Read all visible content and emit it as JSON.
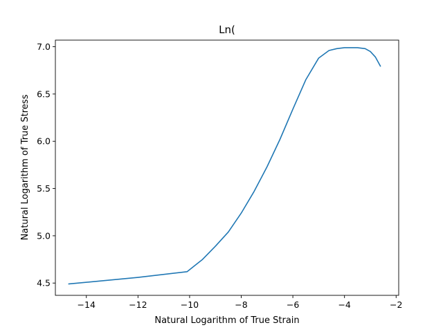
{
  "chart_data": {
    "type": "line",
    "title": "Ln(",
    "xlabel": "Natural Logarithm of True Strain",
    "ylabel": "Natural Logarithm of True Stress",
    "xlim": [
      -15.2,
      -1.9
    ],
    "ylim": [
      4.37,
      7.07
    ],
    "xticks": [
      -14,
      -12,
      -10,
      -8,
      -6,
      -4,
      -2
    ],
    "xtick_labels": [
      "−14",
      "−12",
      "−10",
      "−8",
      "−6",
      "−4",
      "−2"
    ],
    "yticks": [
      4.5,
      5.0,
      5.5,
      6.0,
      6.5,
      7.0
    ],
    "ytick_labels": [
      "4.5",
      "5.0",
      "5.5",
      "6.0",
      "6.5",
      "7.0"
    ],
    "grid": false,
    "legend": "none",
    "series": [
      {
        "color": "#1f77b4",
        "x": [
          -14.7,
          -12.0,
          -10.1,
          -9.5,
          -9.0,
          -8.5,
          -8.0,
          -7.5,
          -7.0,
          -6.5,
          -6.0,
          -5.5,
          -5.0,
          -4.6,
          -4.3,
          -4.0,
          -3.5,
          -3.2,
          -3.0,
          -2.8,
          -2.6
        ],
        "y": [
          4.49,
          4.56,
          4.62,
          4.75,
          4.89,
          5.04,
          5.24,
          5.47,
          5.73,
          6.02,
          6.34,
          6.65,
          6.88,
          6.96,
          6.98,
          6.99,
          6.99,
          6.98,
          6.95,
          6.89,
          6.79
        ]
      }
    ]
  }
}
